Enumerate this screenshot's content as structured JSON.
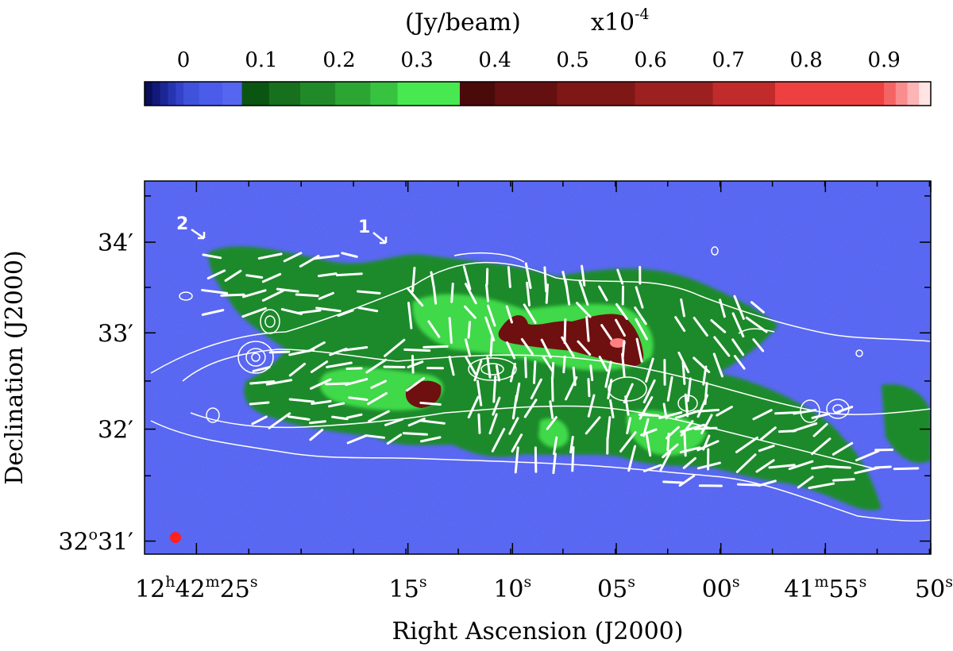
{
  "colorbar": {
    "unit_label": "(Jy/beam)",
    "scale_prefix": "x10",
    "scale_exponent": "-4",
    "ticks": [
      {
        "label": "0",
        "value": 0.0
      },
      {
        "label": "0.1",
        "value": 0.1
      },
      {
        "label": "0.2",
        "value": 0.2
      },
      {
        "label": "0.3",
        "value": 0.3
      },
      {
        "label": "0.4",
        "value": 0.4
      },
      {
        "label": "0.5",
        "value": 0.5
      },
      {
        "label": "0.6",
        "value": 0.6
      },
      {
        "label": "0.7",
        "value": 0.7
      },
      {
        "label": "0.8",
        "value": 0.8
      },
      {
        "label": "0.9",
        "value": 0.9
      }
    ],
    "range": [
      -0.05,
      0.96
    ],
    "segments": [
      {
        "v0": -0.05,
        "v1": -0.04,
        "color": "#0a0f5a"
      },
      {
        "v0": -0.04,
        "v1": -0.03,
        "color": "#12197a"
      },
      {
        "v0": -0.03,
        "v1": -0.02,
        "color": "#1c2694"
      },
      {
        "v0": -0.02,
        "v1": -0.01,
        "color": "#2734b0"
      },
      {
        "v0": -0.01,
        "v1": 0.0,
        "color": "#3342c8"
      },
      {
        "v0": 0.0,
        "v1": 0.02,
        "color": "#3f52dc"
      },
      {
        "v0": 0.02,
        "v1": 0.05,
        "color": "#4a5ce9"
      },
      {
        "v0": 0.05,
        "v1": 0.075,
        "color": "#5566f0"
      },
      {
        "v0": 0.075,
        "v1": 0.11,
        "color": "#0b5512"
      },
      {
        "v0": 0.11,
        "v1": 0.15,
        "color": "#17701d"
      },
      {
        "v0": 0.15,
        "v1": 0.195,
        "color": "#218a28"
      },
      {
        "v0": 0.195,
        "v1": 0.24,
        "color": "#2ba633"
      },
      {
        "v0": 0.24,
        "v1": 0.275,
        "color": "#37c23f"
      },
      {
        "v0": 0.275,
        "v1": 0.355,
        "color": "#48e850"
      },
      {
        "v0": 0.355,
        "v1": 0.4,
        "color": "#4a0a0a"
      },
      {
        "v0": 0.4,
        "v1": 0.48,
        "color": "#641010"
      },
      {
        "v0": 0.48,
        "v1": 0.58,
        "color": "#7f1717"
      },
      {
        "v0": 0.58,
        "v1": 0.68,
        "color": "#9c2020"
      },
      {
        "v0": 0.68,
        "v1": 0.76,
        "color": "#c22b2b"
      },
      {
        "v0": 0.76,
        "v1": 0.9,
        "color": "#ee4040"
      },
      {
        "v0": 0.9,
        "v1": 0.915,
        "color": "#f56464"
      },
      {
        "v0": 0.915,
        "v1": 0.93,
        "color": "#f98c8c"
      },
      {
        "v0": 0.93,
        "v1": 0.945,
        "color": "#fcb4b4"
      },
      {
        "v0": 0.945,
        "v1": 0.96,
        "color": "#ffe4e4"
      }
    ]
  },
  "axes": {
    "xlabel": "Right Ascension (J2000)",
    "ylabel": "Declination (J2000)",
    "x_ticks": [
      {
        "label": "12h42m25s",
        "parts": [
          [
            "12",
            ""
          ],
          [
            "h",
            "sup"
          ],
          [
            "42",
            ""
          ],
          [
            "m",
            "sup"
          ],
          [
            "25",
            ""
          ],
          [
            "s",
            "sup"
          ]
        ],
        "frac": 0.066
      },
      {
        "label": "15s",
        "parts": [
          [
            "15",
            ""
          ],
          [
            "s",
            "sup"
          ]
        ],
        "frac": 0.335
      },
      {
        "label": "10s",
        "parts": [
          [
            "10",
            ""
          ],
          [
            "s",
            "sup"
          ]
        ],
        "frac": 0.468
      },
      {
        "label": "05s",
        "parts": [
          [
            "05",
            ""
          ],
          [
            "s",
            "sup"
          ]
        ],
        "frac": 0.6
      },
      {
        "label": "00s",
        "parts": [
          [
            "00",
            ""
          ],
          [
            "s",
            "sup"
          ]
        ],
        "frac": 0.733
      },
      {
        "label": "41m55s",
        "parts": [
          [
            "41",
            ""
          ],
          [
            "m",
            "sup"
          ],
          [
            "55",
            ""
          ],
          [
            "s",
            "sup"
          ]
        ],
        "frac": 0.866
      },
      {
        "label": "50s",
        "parts": [
          [
            "50",
            ""
          ],
          [
            "s",
            "sup"
          ]
        ],
        "frac": 1.0
      }
    ],
    "y_ticks": [
      {
        "label": "34′",
        "parts": [
          [
            "34′",
            ""
          ]
        ],
        "frac": 0.164
      },
      {
        "label": "33′",
        "parts": [
          [
            "33′",
            ""
          ]
        ],
        "frac": 0.407
      },
      {
        "label": "32′",
        "parts": [
          [
            "32′",
            ""
          ]
        ],
        "frac": 0.665
      },
      {
        "label": "32o31′",
        "parts": [
          [
            "32",
            ""
          ],
          [
            "o",
            "sup"
          ],
          [
            "31′",
            ""
          ]
        ],
        "frac": 0.965
      }
    ]
  },
  "annotations": [
    {
      "id": "1",
      "text": "1",
      "fx": 0.29,
      "fy": 0.135
    },
    {
      "id": "2",
      "text": "2",
      "fx": 0.058,
      "fy": 0.125
    }
  ],
  "colors": {
    "background_field": "#4f5ef0",
    "low_emission": "#1f8a2a",
    "mid_emission": "#3fd94a",
    "high_emission": "#6e1010",
    "peak": "#ff8080",
    "contour": "#ffffff",
    "beam": "#ff2020"
  },
  "features": {
    "beam_marker": "red-beam-ellipse",
    "polarization_vectors": "white-line-segments",
    "contours": "white-contour-lines"
  }
}
